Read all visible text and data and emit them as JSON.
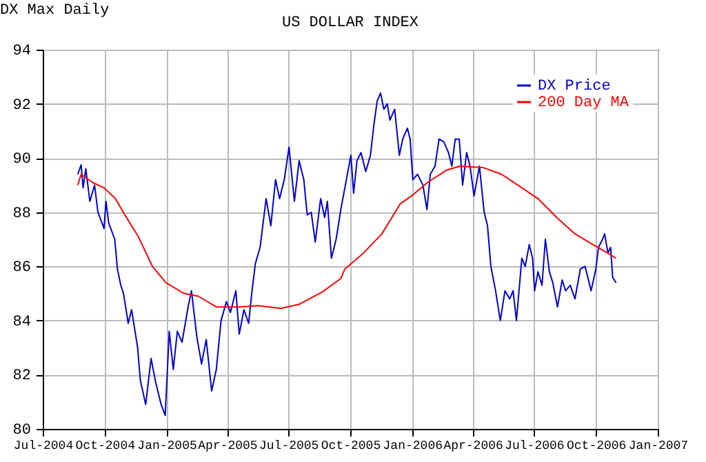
{
  "chart_data": {
    "type": "line",
    "title": "US DOLLAR INDEX",
    "annotations": [
      "DX Max Daily"
    ],
    "xlim": [
      "2004-07-01",
      "2007-01-01"
    ],
    "xticks": [
      {
        "value": "2004-07-01",
        "label": "Jul-2004"
      },
      {
        "value": "2004-10-01",
        "label": "Oct-2004"
      },
      {
        "value": "2005-01-01",
        "label": "Jan-2005"
      },
      {
        "value": "2005-04-01",
        "label": "Apr-2005"
      },
      {
        "value": "2005-07-01",
        "label": "Jul-2005"
      },
      {
        "value": "2005-10-01",
        "label": "Oct-2005"
      },
      {
        "value": "2006-01-01",
        "label": "Jan-2006"
      },
      {
        "value": "2006-04-01",
        "label": "Apr-2006"
      },
      {
        "value": "2006-07-01",
        "label": "Jul-2006"
      },
      {
        "value": "2006-10-01",
        "label": "Oct-2006"
      },
      {
        "value": "2007-01-01",
        "label": "Jan-2007"
      }
    ],
    "ylim": [
      80,
      94
    ],
    "yticks": [
      80,
      82,
      84,
      86,
      88,
      90,
      92,
      94
    ],
    "grid": true,
    "legend": "top right",
    "marker": "none",
    "line_style": "solid",
    "series": [
      {
        "name": "DX Price",
        "color": "#0000cc",
        "x": [
          "2004-08-22",
          "2004-08-27",
          "2004-08-30",
          "2004-09-03",
          "2004-09-09",
          "2004-09-16",
          "2004-09-21",
          "2004-09-30",
          "2004-10-03",
          "2004-10-07",
          "2004-10-16",
          "2004-10-20",
          "2004-10-25",
          "2004-10-29",
          "2004-11-05",
          "2004-11-10",
          "2004-11-19",
          "2004-11-23",
          "2004-12-01",
          "2004-12-09",
          "2004-12-16",
          "2004-12-24",
          "2004-12-30",
          "2005-01-05",
          "2005-01-11",
          "2005-01-17",
          "2005-01-24",
          "2005-02-02",
          "2005-02-07",
          "2005-02-15",
          "2005-02-22",
          "2005-03-01",
          "2005-03-09",
          "2005-03-16",
          "2005-03-23",
          "2005-03-31",
          "2005-04-06",
          "2005-04-14",
          "2005-04-19",
          "2005-04-26",
          "2005-05-03",
          "2005-05-08",
          "2005-05-13",
          "2005-05-20",
          "2005-05-29",
          "2005-06-05",
          "2005-06-12",
          "2005-06-18",
          "2005-06-25",
          "2005-07-02",
          "2005-07-10",
          "2005-07-17",
          "2005-07-24",
          "2005-07-29",
          "2005-08-04",
          "2005-08-10",
          "2005-08-18",
          "2005-08-24",
          "2005-08-28",
          "2005-09-03",
          "2005-09-10",
          "2005-09-17",
          "2005-09-23",
          "2005-10-02",
          "2005-10-06",
          "2005-10-11",
          "2005-10-17",
          "2005-10-24",
          "2005-10-31",
          "2005-11-05",
          "2005-11-10",
          "2005-11-15",
          "2005-11-20",
          "2005-11-25",
          "2005-11-29",
          "2005-12-06",
          "2005-12-13",
          "2005-12-18",
          "2005-12-25",
          "2005-12-29",
          "2006-01-02",
          "2006-01-09",
          "2006-01-17",
          "2006-01-23",
          "2006-01-28",
          "2006-02-04",
          "2006-02-10",
          "2006-02-17",
          "2006-02-24",
          "2006-03-01",
          "2006-03-06",
          "2006-03-12",
          "2006-03-17",
          "2006-03-23",
          "2006-03-28",
          "2006-04-03",
          "2006-04-11",
          "2006-04-18",
          "2006-04-23",
          "2006-04-28",
          "2006-05-05",
          "2006-05-12",
          "2006-05-19",
          "2006-05-26",
          "2006-05-31",
          "2006-06-05",
          "2006-06-13",
          "2006-06-18",
          "2006-06-24",
          "2006-06-29",
          "2006-07-02",
          "2006-07-07",
          "2006-07-13",
          "2006-07-18",
          "2006-07-24",
          "2006-07-29",
          "2006-08-05",
          "2006-08-12",
          "2006-08-17",
          "2006-08-24",
          "2006-08-31",
          "2006-09-08",
          "2006-09-15",
          "2006-09-24",
          "2006-10-01",
          "2006-10-05",
          "2006-10-11",
          "2006-10-14",
          "2006-10-19",
          "2006-10-23",
          "2006-10-26",
          "2006-10-31"
        ],
        "values": [
          89.4,
          89.75,
          88.9,
          89.6,
          88.4,
          89.0,
          88.0,
          87.4,
          88.4,
          87.6,
          87.0,
          85.9,
          85.3,
          85.0,
          83.9,
          84.4,
          83.0,
          81.8,
          80.9,
          82.6,
          81.7,
          80.9,
          80.5,
          83.6,
          82.2,
          83.6,
          83.2,
          84.5,
          85.1,
          83.4,
          82.4,
          83.3,
          81.4,
          82.2,
          84.0,
          84.7,
          84.3,
          85.1,
          83.5,
          84.4,
          83.9,
          85.1,
          86.1,
          86.7,
          88.5,
          87.5,
          89.2,
          88.5,
          89.2,
          90.4,
          88.4,
          89.9,
          89.2,
          87.9,
          88.0,
          86.9,
          88.5,
          87.8,
          88.4,
          86.3,
          87.0,
          88.1,
          88.9,
          90.1,
          88.7,
          89.9,
          90.2,
          89.5,
          90.1,
          91.2,
          92.1,
          92.4,
          91.8,
          92.0,
          91.4,
          91.8,
          90.1,
          90.7,
          91.1,
          90.7,
          89.2,
          89.4,
          89.0,
          88.1,
          89.4,
          89.7,
          90.7,
          90.6,
          90.2,
          89.7,
          90.7,
          90.7,
          89.0,
          90.2,
          89.7,
          88.6,
          89.7,
          88.0,
          87.5,
          86.0,
          85.1,
          84.0,
          85.1,
          84.8,
          85.1,
          84.0,
          86.3,
          86.0,
          86.8,
          86.3,
          85.1,
          85.8,
          85.3,
          87.0,
          85.8,
          85.4,
          84.5,
          85.5,
          85.1,
          85.3,
          84.8,
          85.9,
          86.0,
          85.1,
          85.9,
          86.7,
          87.0,
          87.2,
          86.5,
          86.7,
          85.6,
          85.4
        ]
      },
      {
        "name": "200 Day MA",
        "color": "#ff0000",
        "x": [
          "2004-08-22",
          "2004-08-27",
          "2004-09-13",
          "2004-09-30",
          "2004-10-17",
          "2004-10-31",
          "2004-11-20",
          "2004-12-11",
          "2004-12-31",
          "2005-01-27",
          "2005-02-17",
          "2005-03-16",
          "2005-04-19",
          "2005-05-17",
          "2005-06-20",
          "2005-07-17",
          "2005-08-20",
          "2005-09-17",
          "2005-09-23",
          "2005-10-21",
          "2005-11-17",
          "2005-12-14",
          "2005-12-31",
          "2006-01-24",
          "2006-02-21",
          "2006-03-13",
          "2006-04-16",
          "2006-05-14",
          "2006-06-10",
          "2006-07-07",
          "2006-08-04",
          "2006-08-31",
          "2006-09-27",
          "2006-10-18",
          "2006-10-31"
        ],
        "values": [
          89.0,
          89.4,
          89.1,
          88.9,
          88.5,
          87.9,
          87.1,
          86.0,
          85.4,
          85.0,
          84.9,
          84.5,
          84.5,
          84.55,
          84.45,
          84.6,
          85.05,
          85.55,
          85.9,
          86.5,
          87.2,
          88.3,
          88.6,
          89.1,
          89.55,
          89.7,
          89.65,
          89.4,
          88.95,
          88.5,
          87.8,
          87.2,
          86.8,
          86.5,
          86.3
        ]
      }
    ]
  }
}
